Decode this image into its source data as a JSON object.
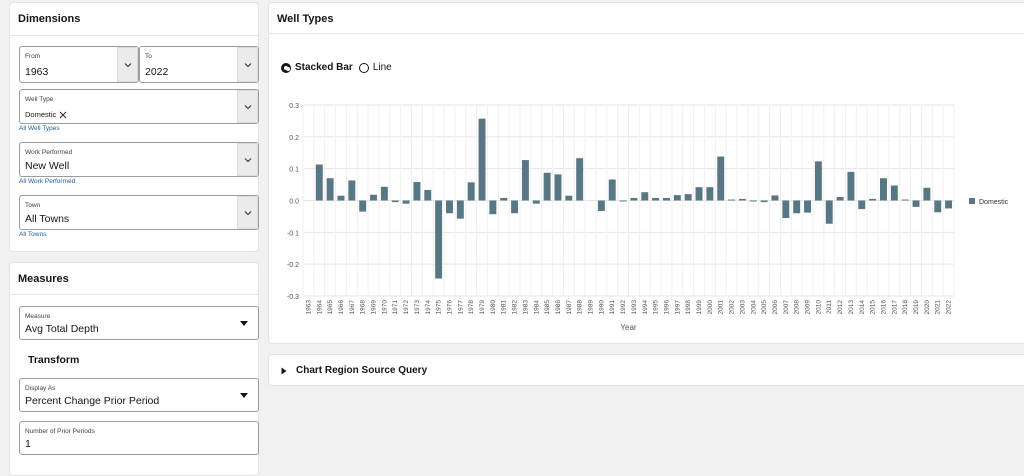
{
  "dimensions": {
    "title": "Dimensions",
    "from": {
      "label": "From",
      "value": "1963"
    },
    "to": {
      "label": "To",
      "value": "2022"
    },
    "well_type": {
      "label": "Well Type",
      "chip": "Domestic",
      "link": "All Well Types"
    },
    "work_performed": {
      "label": "Work Performed",
      "value": "New Well",
      "link": "All Work Performed"
    },
    "town": {
      "label": "Town",
      "value": "All Towns",
      "link": "All Towns"
    }
  },
  "measures": {
    "title": "Measures",
    "measure": {
      "label": "Measure",
      "value": "Avg Total Depth"
    },
    "transform_heading": "Transform",
    "display_as": {
      "label": "Display As",
      "value": "Percent Change Prior Period"
    },
    "prior_periods": {
      "label": "Number of Prior Periods",
      "value": "1"
    }
  },
  "well_types_panel": {
    "title": "Well Types",
    "chart_type_options": [
      {
        "label": "Stacked Bar",
        "selected": true
      },
      {
        "label": "Line",
        "selected": false
      }
    ]
  },
  "source_query": {
    "title": "Chart Region Source Query"
  },
  "chart_data": {
    "type": "bar",
    "xlabel": "Year",
    "ylabel": "",
    "ylim": [
      -0.3,
      0.3
    ],
    "yticks": [
      "0.3",
      "0.2",
      "0.1",
      "0.0",
      "-0.1",
      "-0.2",
      "-0.3"
    ],
    "grid": true,
    "legend_position": "right",
    "bar_color": "#587784",
    "categories": [
      "1963",
      "1964",
      "1965",
      "1966",
      "1967",
      "1968",
      "1969",
      "1970",
      "1971",
      "1972",
      "1973",
      "1974",
      "1975",
      "1976",
      "1977",
      "1978",
      "1979",
      "1980",
      "1981",
      "1982",
      "1983",
      "1984",
      "1985",
      "1986",
      "1987",
      "1988",
      "1989",
      "1990",
      "1991",
      "1992",
      "1993",
      "1994",
      "1995",
      "1996",
      "1997",
      "1998",
      "1999",
      "2000",
      "2001",
      "2002",
      "2003",
      "2004",
      "2005",
      "2006",
      "2007",
      "2008",
      "2009",
      "2010",
      "2011",
      "2012",
      "2013",
      "2014",
      "2015",
      "2016",
      "2017",
      "2018",
      "2019",
      "2020",
      "2021",
      "2022"
    ],
    "series": [
      {
        "name": "Domestic",
        "values": [
          0,
          0.113,
          0.07,
          0.015,
          0.063,
          -0.035,
          0.018,
          0.043,
          -0.005,
          -0.01,
          0.058,
          0.033,
          -0.245,
          -0.04,
          -0.057,
          0.057,
          0.257,
          -0.043,
          0.008,
          -0.04,
          0.127,
          -0.01,
          0.087,
          0.082,
          0.015,
          0.133,
          0,
          -0.033,
          0.066,
          -0.003,
          0.008,
          0.026,
          0.008,
          0.008,
          0.017,
          0.02,
          0.042,
          0.042,
          0.138,
          0.003,
          0.005,
          -0.003,
          -0.005,
          0.016,
          -0.055,
          -0.04,
          -0.038,
          0.123,
          -0.073,
          0.011,
          0.09,
          -0.027,
          0.005,
          0.07,
          0.047,
          0.003,
          -0.02,
          0.04,
          -0.037,
          -0.025
        ]
      }
    ]
  }
}
